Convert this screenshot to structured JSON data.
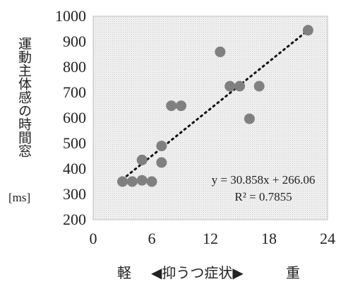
{
  "chart_data": {
    "type": "scatter",
    "xlim": [
      0,
      24
    ],
    "ylim": [
      200,
      1000
    ],
    "xticks": [
      0,
      6,
      12,
      18,
      24
    ],
    "yticks": [
      200,
      300,
      400,
      500,
      600,
      700,
      800,
      900,
      1000
    ],
    "ylabel": "運動主体感の時間窓",
    "yunit": "[ms]",
    "xlabel_left": "軽",
    "xlabel_center": "◀抑うつ症状▶",
    "xlabel_right": "重",
    "points": [
      {
        "x": 3,
        "y": 350
      },
      {
        "x": 4,
        "y": 350
      },
      {
        "x": 5,
        "y": 355
      },
      {
        "x": 5,
        "y": 435
      },
      {
        "x": 6,
        "y": 350
      },
      {
        "x": 7,
        "y": 490
      },
      {
        "x": 7,
        "y": 425
      },
      {
        "x": 8,
        "y": 648
      },
      {
        "x": 9,
        "y": 648
      },
      {
        "x": 13,
        "y": 860
      },
      {
        "x": 14,
        "y": 725
      },
      {
        "x": 15,
        "y": 725
      },
      {
        "x": 16,
        "y": 597
      },
      {
        "x": 17,
        "y": 725
      },
      {
        "x": 22,
        "y": 945
      }
    ],
    "trendline": {
      "slope": 30.858,
      "intercept": 266.06,
      "x_range": [
        3,
        22
      ]
    },
    "equation": "y = 30.858x + 266.06",
    "r_squared": "R² = 0.7855",
    "grid": false,
    "colors": {
      "marker": "#808080",
      "trendline": "#111111",
      "plot_background": "#e9e9e9"
    }
  }
}
